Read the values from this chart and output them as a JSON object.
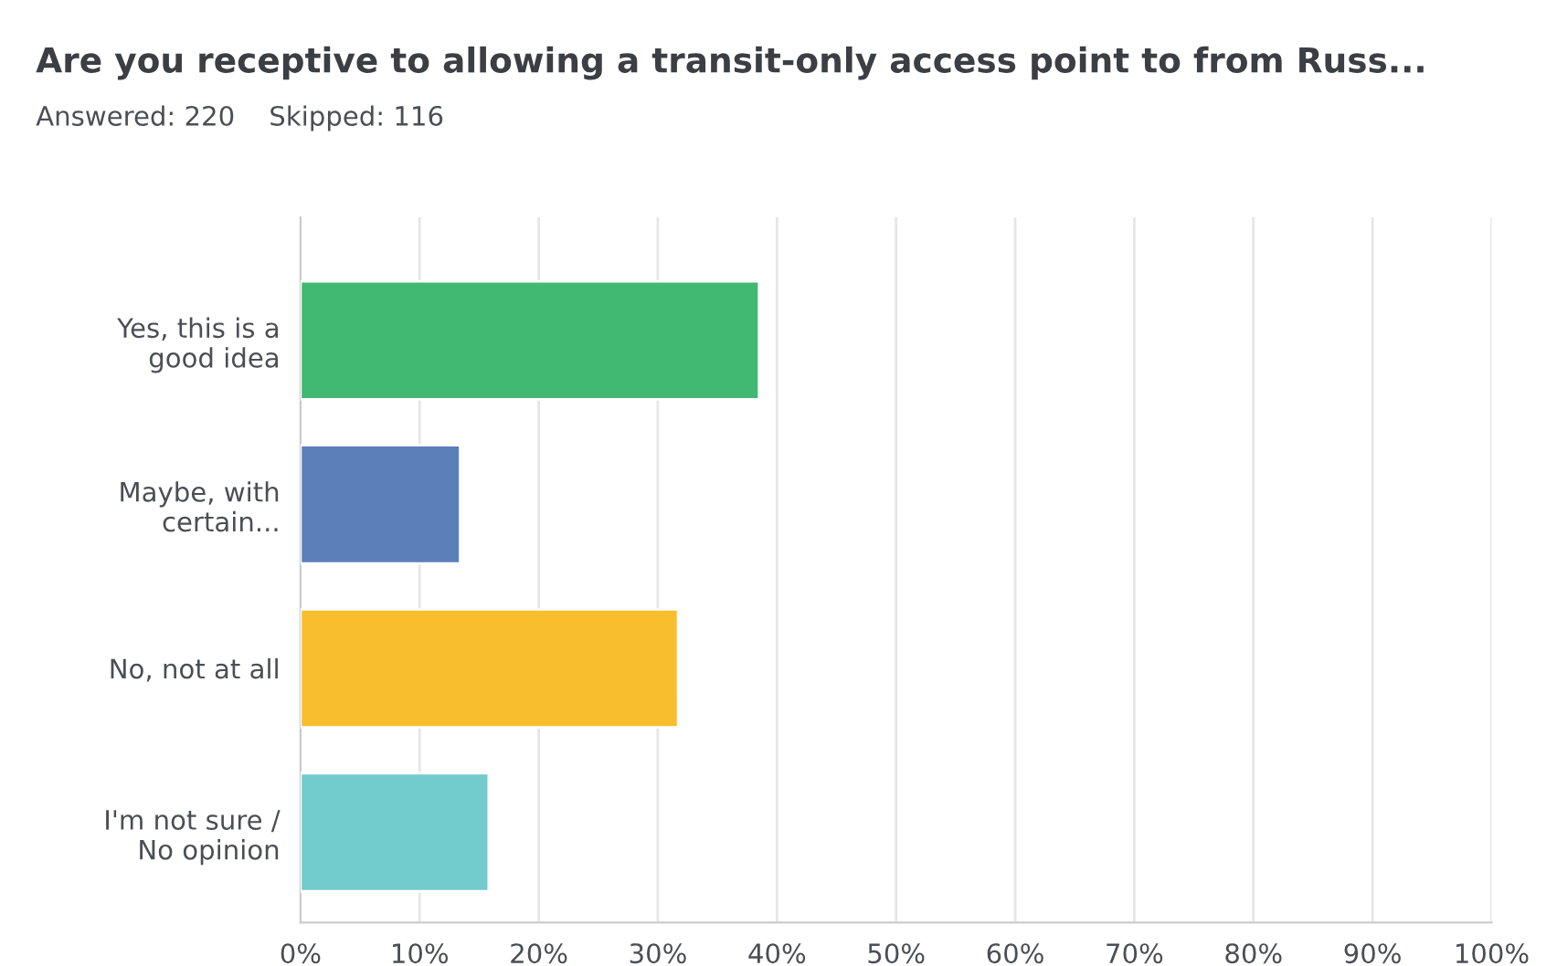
{
  "chart_data": {
    "type": "bar",
    "orientation": "horizontal",
    "title": "Are you receptive to allowing a transit-only access point to from Russ...",
    "subtitle": "Answered: 220    Skipped: 116",
    "categories": [
      "Yes, this is a\ngood idea",
      "Maybe, with\ncertain...",
      "No, not at all",
      "I'm not sure /\nNo opinion"
    ],
    "values": [
      38.5,
      13.4,
      31.7,
      15.8
    ],
    "colors": [
      "#41b972",
      "#5b7fb8",
      "#f8be2e",
      "#72cbcd"
    ],
    "xlim": [
      0,
      100
    ],
    "xticks": [
      {
        "value": 0,
        "label": "0%"
      },
      {
        "value": 10,
        "label": "10%"
      },
      {
        "value": 20,
        "label": "20%"
      },
      {
        "value": 30,
        "label": "30%"
      },
      {
        "value": 40,
        "label": "40%"
      },
      {
        "value": 50,
        "label": "50%"
      },
      {
        "value": 60,
        "label": "60%"
      },
      {
        "value": 70,
        "label": "70%"
      },
      {
        "value": 80,
        "label": "80%"
      },
      {
        "value": 90,
        "label": "90%"
      },
      {
        "value": 100,
        "label": "100%"
      }
    ],
    "grid": "x"
  }
}
